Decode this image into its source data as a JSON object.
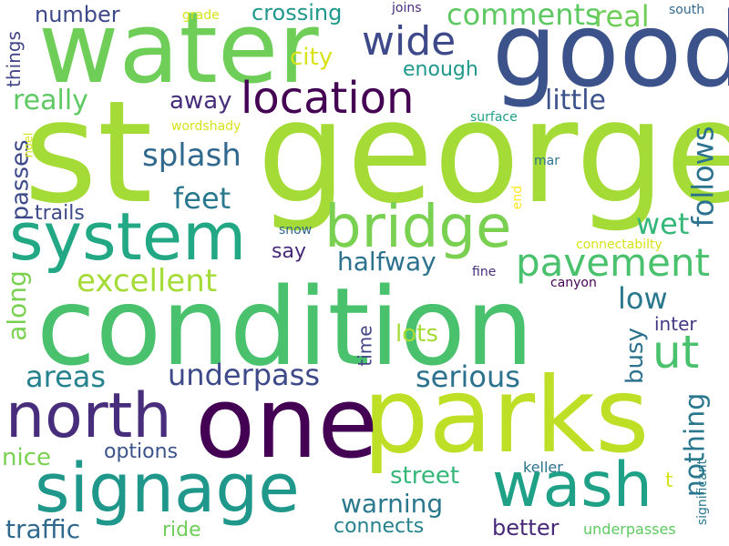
{
  "words": [
    {
      "id": "st",
      "text": "st",
      "color": "#a5db36"
    },
    {
      "id": "george",
      "text": "george",
      "color": "#a5db36"
    },
    {
      "id": "condition",
      "text": "condition",
      "color": "#4ac16d"
    },
    {
      "id": "water",
      "text": "water",
      "color": "#6ece58"
    },
    {
      "id": "good",
      "text": "good",
      "color": "#3b528b"
    },
    {
      "id": "parks",
      "text": "parks",
      "color": "#bddf26"
    },
    {
      "id": "one",
      "text": "one",
      "color": "#440154"
    },
    {
      "id": "system",
      "text": "system",
      "color": "#22a884"
    },
    {
      "id": "signage",
      "text": "signage",
      "color": "#1f988b"
    },
    {
      "id": "north",
      "text": "north",
      "color": "#472d7b"
    },
    {
      "id": "bridge",
      "text": "bridge",
      "color": "#7ad151"
    },
    {
      "id": "wash",
      "text": "wash",
      "color": "#1fa187"
    },
    {
      "id": "location",
      "text": "location",
      "color": "#440154"
    },
    {
      "id": "wide",
      "text": "wide",
      "color": "#3e4989"
    },
    {
      "id": "pavement",
      "text": "pavement",
      "color": "#4ac16d"
    },
    {
      "id": "ut",
      "text": "ut",
      "color": "#4ac16d"
    },
    {
      "id": "underpass",
      "text": "underpass",
      "color": "#3e4989"
    },
    {
      "id": "comments",
      "text": "comments",
      "color": "#5ec962"
    },
    {
      "id": "real",
      "text": "real",
      "color": "#6ece58"
    },
    {
      "id": "excellent",
      "text": "excellent",
      "color": "#a5db36"
    },
    {
      "id": "serious",
      "text": "serious",
      "color": "#2c728e"
    },
    {
      "id": "areas",
      "text": "areas",
      "color": "#26828e"
    },
    {
      "id": "splash",
      "text": "splash",
      "color": "#31688e"
    },
    {
      "id": "feet",
      "text": "feet",
      "color": "#2a788e"
    },
    {
      "id": "really",
      "text": "really",
      "color": "#5ec962"
    },
    {
      "id": "little",
      "text": "little",
      "color": "#3b528b"
    },
    {
      "id": "follows",
      "text": "follows",
      "color": "#2c728e"
    },
    {
      "id": "warning",
      "text": "warning",
      "color": "#2a788e"
    },
    {
      "id": "halfway",
      "text": "halfway",
      "color": "#2c728e"
    },
    {
      "id": "wet",
      "text": "wet",
      "color": "#35b779"
    },
    {
      "id": "low",
      "text": "low",
      "color": "#2a788e"
    },
    {
      "id": "nothing",
      "text": "nothing",
      "color": "#2a788e"
    },
    {
      "id": "street",
      "text": "street",
      "color": "#35b779"
    },
    {
      "id": "away",
      "text": "away",
      "color": "#472d7b"
    },
    {
      "id": "traffic",
      "text": "traffic",
      "color": "#31688e"
    },
    {
      "id": "number",
      "text": "number",
      "color": "#3e4989"
    },
    {
      "id": "crossing",
      "text": "crossing",
      "color": "#1f988b"
    },
    {
      "id": "along",
      "text": "along",
      "color": "#7ad151"
    },
    {
      "id": "passes",
      "text": "passes",
      "color": "#3e4989"
    },
    {
      "id": "better",
      "text": "better",
      "color": "#482878"
    },
    {
      "id": "connects",
      "text": "connects",
      "color": "#26828e"
    },
    {
      "id": "nice",
      "text": "nice",
      "color": "#7ad151"
    },
    {
      "id": "options",
      "text": "options",
      "color": "#3b528b"
    },
    {
      "id": "busy",
      "text": "busy",
      "color": "#2c728e"
    },
    {
      "id": "lots",
      "text": "lots",
      "color": "#a5db36"
    },
    {
      "id": "enough",
      "text": "enough",
      "color": "#1f988b"
    },
    {
      "id": "city",
      "text": "city",
      "color": "#d8e219"
    },
    {
      "id": "trails",
      "text": "trails",
      "color": "#3e4989"
    },
    {
      "id": "say",
      "text": "say",
      "color": "#482878"
    },
    {
      "id": "time",
      "text": "time",
      "color": "#414487"
    },
    {
      "id": "inter",
      "text": "inter",
      "color": "#443983"
    },
    {
      "id": "things",
      "text": "things",
      "color": "#414487"
    },
    {
      "id": "ride",
      "text": "ride",
      "color": "#6ece58"
    },
    {
      "id": "t",
      "text": "t",
      "color": "#d8e219"
    },
    {
      "id": "significant",
      "text": "significant",
      "color": "#2a788e"
    },
    {
      "id": "underpasses",
      "text": "underpasses",
      "color": "#5ec962"
    },
    {
      "id": "keller",
      "text": "keller",
      "color": "#2c728e"
    },
    {
      "id": "grade",
      "text": "grade",
      "color": "#d8e219"
    },
    {
      "id": "joins",
      "text": "joins",
      "color": "#472d7b"
    },
    {
      "id": "south",
      "text": "south",
      "color": "#31688e"
    },
    {
      "id": "wordshady",
      "text": "wordshady",
      "color": "#d8e219"
    },
    {
      "id": "surface",
      "text": "surface",
      "color": "#1fa187"
    },
    {
      "id": "noel",
      "text": "noel",
      "color": "#d8e219"
    },
    {
      "id": "end",
      "text": "end",
      "color": "#fde725"
    },
    {
      "id": "mar",
      "text": "mar",
      "color": "#2c728e"
    },
    {
      "id": "snow",
      "text": "snow",
      "color": "#31688e"
    },
    {
      "id": "connectabilty",
      "text": "connectabilty",
      "color": "#d8e219"
    },
    {
      "id": "fine",
      "text": "fine",
      "color": "#472d7b"
    },
    {
      "id": "canyon",
      "text": "canyon",
      "color": "#440154"
    }
  ]
}
